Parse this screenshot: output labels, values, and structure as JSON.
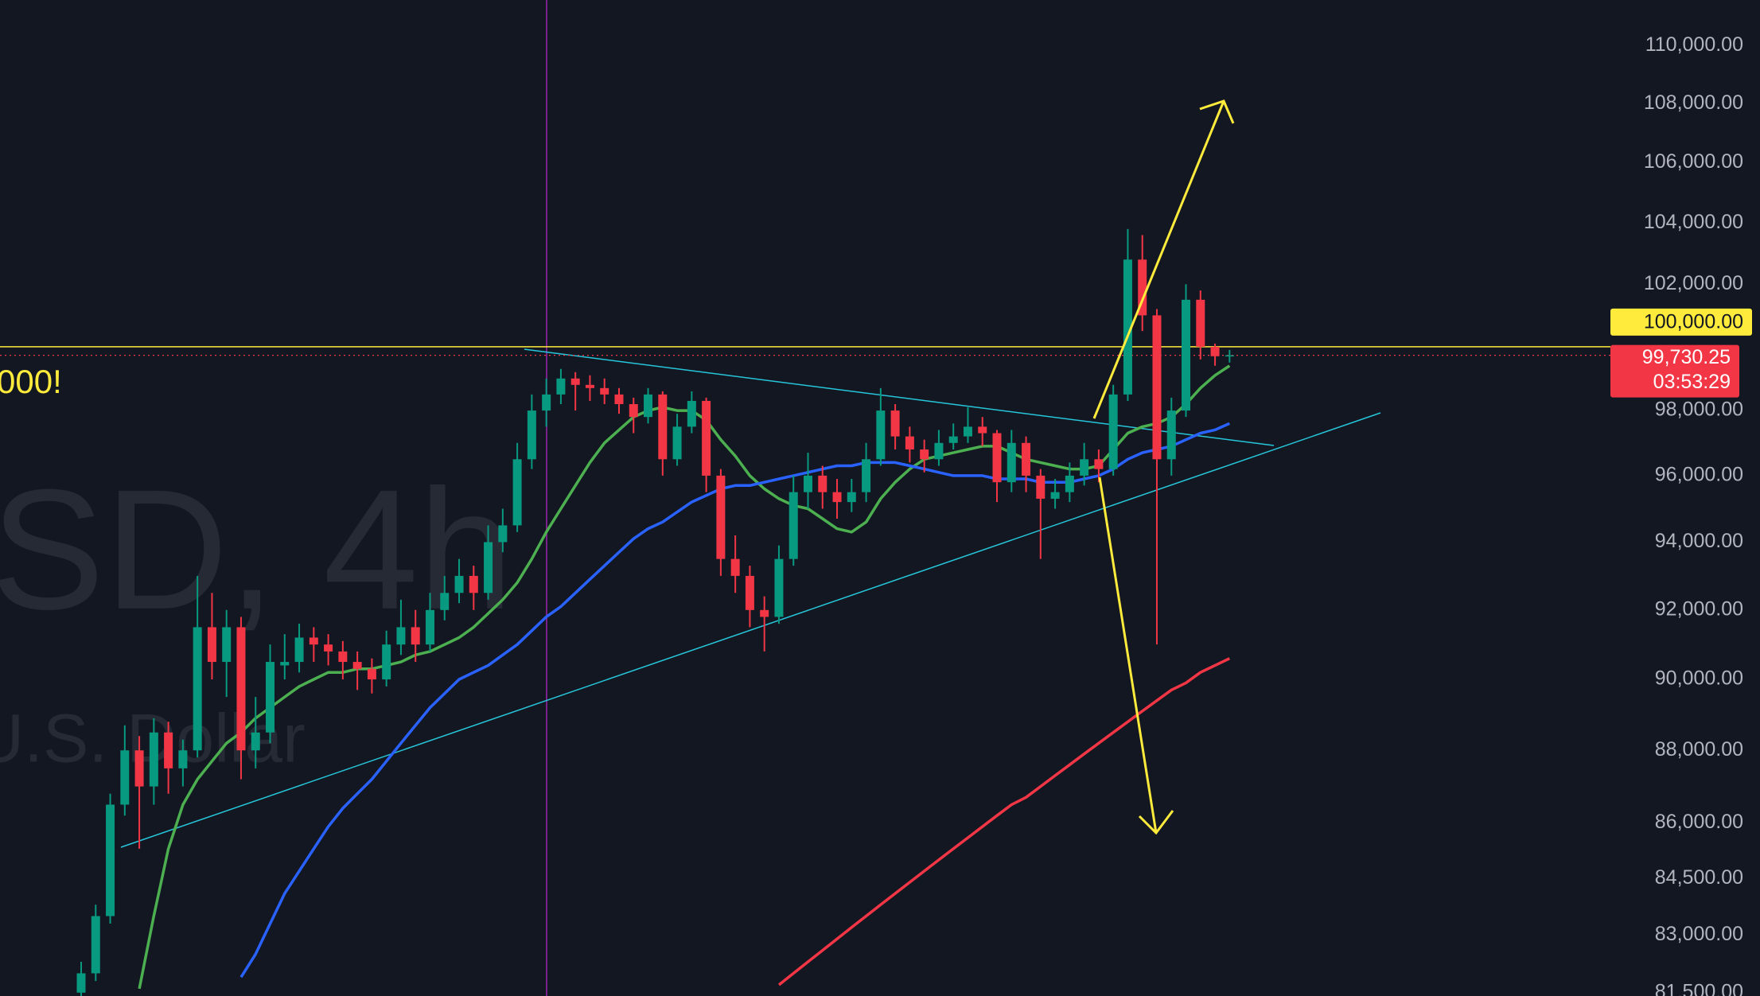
{
  "chart_data": {
    "type": "candlestick",
    "open": [
      81500,
      82000,
      83500,
      86500,
      88000,
      87000,
      88500,
      87500,
      88000,
      91500,
      90500,
      91500,
      88000,
      88500,
      90400,
      90500,
      91200,
      91000,
      90800,
      90500,
      90300,
      90000,
      91000,
      91500,
      91000,
      92000,
      92500,
      93000,
      92500,
      94000,
      94500,
      96500,
      98000,
      98500,
      99000,
      98800,
      98700,
      98500,
      98200,
      97800,
      98500,
      96500,
      97500,
      98300,
      96000,
      93500,
      93000,
      92000,
      91800,
      93500,
      95500,
      96000,
      95500,
      95200,
      95500,
      96500,
      98000,
      97200,
      96800,
      96500,
      97000,
      97200,
      97500,
      97300,
      95800,
      97000,
      96000,
      95300,
      95500,
      96000,
      96500,
      96200,
      98500,
      102800,
      101000,
      96500,
      98000,
      101500,
      100000,
      99700
    ],
    "high": [
      82300,
      83800,
      86800,
      88700,
      88400,
      88900,
      88800,
      88300,
      93000,
      92500,
      92000,
      91800,
      89500,
      91000,
      91300,
      91600,
      91500,
      91300,
      91100,
      90800,
      90600,
      91400,
      92300,
      92000,
      92500,
      93000,
      93500,
      93300,
      94500,
      95000,
      97000,
      98500,
      99000,
      99300,
      99200,
      99100,
      99000,
      98700,
      98400,
      98700,
      98600,
      97900,
      98600,
      98400,
      96200,
      94200,
      93300,
      92400,
      93900,
      96000,
      96700,
      96300,
      95900,
      95900,
      97000,
      98700,
      98200,
      97500,
      97100,
      97400,
      97600,
      98100,
      97800,
      97400,
      97400,
      97200,
      96200,
      95900,
      96400,
      97000,
      96800,
      98800,
      103800,
      103600,
      101200,
      98400,
      102000,
      101800,
      100100,
      99900
    ],
    "low": [
      81300,
      81800,
      83300,
      86200,
      85300,
      86500,
      86800,
      87000,
      87800,
      90000,
      89500,
      87200,
      87500,
      88200,
      90000,
      90200,
      90500,
      90400,
      90000,
      89700,
      89600,
      89800,
      90700,
      90500,
      90800,
      91700,
      92200,
      92000,
      92300,
      93700,
      94300,
      96200,
      97500,
      98200,
      98000,
      98300,
      98200,
      97900,
      97300,
      97600,
      96000,
      96300,
      97300,
      95500,
      93000,
      92500,
      91500,
      90800,
      91600,
      93300,
      95000,
      95000,
      94700,
      94900,
      95200,
      96300,
      96800,
      96400,
      96100,
      96300,
      96800,
      97000,
      96900,
      95200,
      95500,
      95500,
      93500,
      95000,
      95200,
      95700,
      95800,
      96000,
      98300,
      100500,
      91000,
      96000,
      97800,
      99600,
      99400,
      99500
    ],
    "close": [
      82000,
      83500,
      86500,
      88000,
      87000,
      88500,
      87500,
      88000,
      91500,
      90500,
      91500,
      88000,
      88500,
      90500,
      90500,
      91200,
      91000,
      90800,
      90500,
      90300,
      90000,
      91000,
      91500,
      91000,
      92000,
      92500,
      93000,
      92500,
      94000,
      94500,
      96500,
      98000,
      98500,
      99000,
      98800,
      98700,
      98500,
      98200,
      97800,
      98500,
      96500,
      97500,
      98300,
      96000,
      93500,
      93000,
      92000,
      91800,
      93500,
      95500,
      96000,
      95500,
      95200,
      95500,
      96500,
      98000,
      97200,
      96800,
      96500,
      97000,
      97200,
      97500,
      97300,
      95800,
      97000,
      96000,
      95300,
      95500,
      96000,
      96500,
      96200,
      98500,
      102800,
      101000,
      96500,
      98000,
      101500,
      100000,
      99700,
      99730.25
    ],
    "up_color": "#089981",
    "down_color": "#f23645",
    "series": [
      {
        "color": "#4caf50",
        "values": [
          null,
          null,
          null,
          null,
          81600,
          83500,
          85300,
          86500,
          87200,
          87700,
          88200,
          88500,
          88900,
          89200,
          89500,
          89800,
          90000,
          90200,
          90200,
          90300,
          90300,
          90400,
          90500,
          90700,
          90800,
          91000,
          91200,
          91500,
          91900,
          92300,
          92800,
          93500,
          94300,
          95000,
          95700,
          96400,
          97000,
          97400,
          97800,
          98000,
          98100,
          98000,
          98000,
          97700,
          97100,
          96600,
          96000,
          95600,
          95300,
          95100,
          95000,
          94700,
          94400,
          94300,
          94600,
          95300,
          95800,
          96200,
          96500,
          96600,
          96700,
          96800,
          96900,
          96900,
          96700,
          96500,
          96400,
          96300,
          96200,
          96200,
          96300,
          96800,
          97300,
          97500,
          97600,
          97800,
          98200,
          98700,
          99100,
          99400
        ]
      },
      {
        "color": "#2962ff",
        "values": [
          null,
          null,
          null,
          null,
          null,
          null,
          null,
          null,
          null,
          null,
          null,
          81900,
          82500,
          83300,
          84100,
          84700,
          85300,
          85900,
          86400,
          86800,
          87200,
          87700,
          88200,
          88700,
          89200,
          89600,
          90000,
          90200,
          90400,
          90700,
          91000,
          91400,
          91800,
          92100,
          92500,
          92900,
          93300,
          93700,
          94100,
          94400,
          94600,
          94900,
          95200,
          95400,
          95600,
          95700,
          95700,
          95800,
          95900,
          96000,
          96100,
          96200,
          96300,
          96300,
          96400,
          96400,
          96400,
          96300,
          96200,
          96100,
          96000,
          96000,
          96000,
          95900,
          95900,
          95900,
          95800,
          95800,
          95800,
          95900,
          96000,
          96200,
          96500,
          96700,
          96800,
          96900,
          97100,
          97300,
          97400,
          97600
        ]
      },
      {
        "color": "#f23645",
        "values": [
          null,
          null,
          null,
          null,
          null,
          null,
          null,
          null,
          null,
          null,
          null,
          null,
          null,
          null,
          null,
          null,
          null,
          null,
          null,
          null,
          null,
          null,
          null,
          null,
          null,
          null,
          null,
          null,
          null,
          null,
          null,
          null,
          null,
          null,
          null,
          null,
          null,
          null,
          null,
          null,
          null,
          null,
          null,
          null,
          null,
          null,
          null,
          null,
          81700,
          82000,
          82300,
          82600,
          82900,
          83200,
          83500,
          83800,
          84100,
          84400,
          84700,
          85000,
          85300,
          85600,
          85900,
          86200,
          86500,
          86700,
          87000,
          87300,
          87600,
          87900,
          88200,
          88500,
          88800,
          89100,
          89400,
          89700,
          89900,
          90200,
          90400,
          90600
        ]
      }
    ],
    "log_scale": true,
    "ylim": [
      81413,
      111609
    ],
    "yticks": [
      {
        "value": 110000,
        "label": "110,000.00"
      },
      {
        "value": 108000,
        "label": "108,000.00"
      },
      {
        "value": 106000,
        "label": "106,000.00"
      },
      {
        "value": 104000,
        "label": "104,000.00"
      },
      {
        "value": 102000,
        "label": "102,000.00"
      },
      {
        "value": 98000,
        "label": "98,000.00"
      },
      {
        "value": 96000,
        "label": "96,000.00"
      },
      {
        "value": 94000,
        "label": "94,000.00"
      },
      {
        "value": 92000,
        "label": "92,000.00"
      },
      {
        "value": 90000,
        "label": "90,000.00"
      },
      {
        "value": 88000,
        "label": "88,000.00"
      },
      {
        "value": 86000,
        "label": "86,000.00"
      },
      {
        "value": 84500,
        "label": "84,500.00"
      },
      {
        "value": 83000,
        "label": "83,000.00"
      },
      {
        "value": 81500,
        "label": "81,500.00"
      }
    ],
    "level": {
      "value": 100000,
      "label": "100,000.00",
      "color": "#ffeb3b"
    },
    "last_price": {
      "value": 99730.25,
      "label": "99,730.25",
      "countdown": "03:53:29"
    },
    "annotation": "000!",
    "watermark": [
      "SD, 4h",
      "U.S. Dollar"
    ]
  }
}
